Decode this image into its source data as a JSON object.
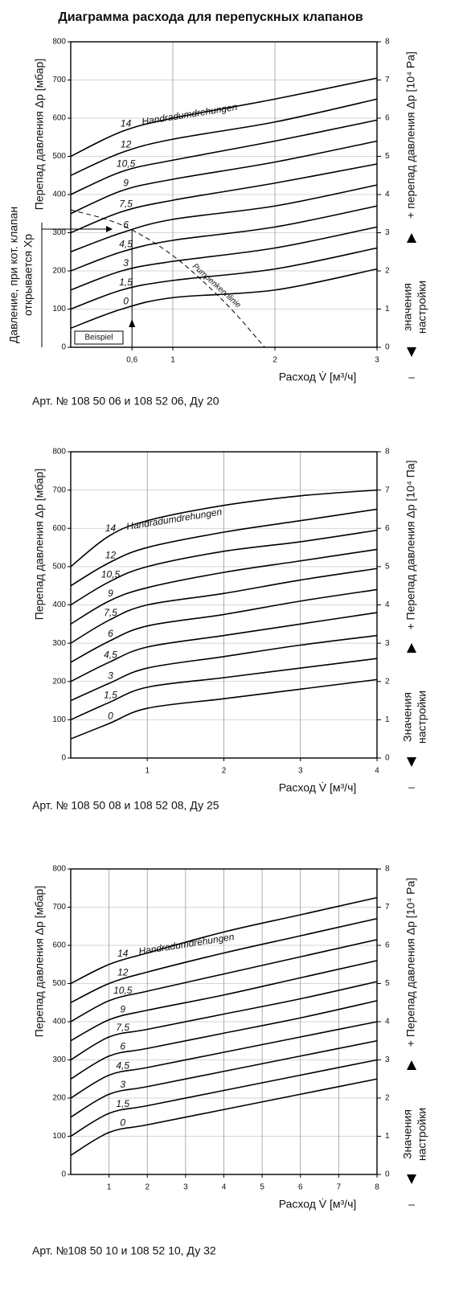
{
  "title": "Диаграмма расхода для перепускных клапанов",
  "chart_data": [
    {
      "type": "line",
      "caption": "Арт. № 108 50 06 и 108 52 06, Ду 20",
      "ylabel": "Перепад давления Δp [мбар]",
      "y2label": "+ перепад давления Δp [10⁴ Pa]",
      "setting_label": [
        "значения",
        "настройки"
      ],
      "minus_sign": "–",
      "xlabel": "Расход V̇ [м³/ч]",
      "curve_note": "Handradumdrehungen",
      "xp_label": [
        "Давление, при кот. клапан",
        "открывается Xp"
      ],
      "example": "Beispiel",
      "xlim": [
        0,
        3
      ],
      "ylim": [
        0,
        800
      ],
      "y2lim": [
        0,
        8
      ],
      "xticks": [
        {
          "value": 0.6,
          "label": "0,6"
        },
        1,
        2,
        3
      ],
      "yticks": [
        0,
        100,
        200,
        300,
        400,
        500,
        600,
        700,
        800
      ],
      "y2ticks": [
        0,
        1,
        2,
        3,
        4,
        5,
        6,
        7,
        8
      ],
      "grid": true,
      "x": [
        0,
        0.5,
        1,
        2,
        3
      ],
      "series": [
        {
          "name": "14",
          "color": "#000000",
          "values": [
            500,
            565,
            600,
            650,
            705
          ]
        },
        {
          "name": "12",
          "color": "#000000",
          "values": [
            450,
            510,
            545,
            590,
            650
          ]
        },
        {
          "name": "10,5",
          "color": "#000000",
          "values": [
            400,
            460,
            490,
            540,
            595
          ]
        },
        {
          "name": "9",
          "color": "#000000",
          "values": [
            350,
            410,
            440,
            485,
            540
          ]
        },
        {
          "name": "7,5",
          "color": "#000000",
          "values": [
            300,
            355,
            385,
            430,
            480
          ]
        },
        {
          "name": "6",
          "color": "#000000",
          "values": [
            250,
            300,
            335,
            370,
            425
          ]
        },
        {
          "name": "4,5",
          "color": "#000000",
          "values": [
            200,
            250,
            280,
            315,
            370
          ]
        },
        {
          "name": "3",
          "color": "#000000",
          "values": [
            150,
            200,
            225,
            260,
            315
          ]
        },
        {
          "name": "1,5",
          "color": "#000000",
          "values": [
            100,
            150,
            175,
            205,
            260
          ]
        },
        {
          "name": "0",
          "color": "#000000",
          "values": [
            50,
            100,
            130,
            150,
            205
          ]
        },
        {
          "name": "Pumpenkennlinie",
          "color": "#000000",
          "dashed": true,
          "x": [
            0,
            0.5,
            1,
            1.5,
            1.9
          ],
          "values": [
            360,
            320,
            240,
            120,
            0
          ]
        }
      ]
    },
    {
      "type": "line",
      "caption": "Арт. № 108 50 08 и 108 52 08, Ду 25",
      "ylabel": "Перепад давления Δp [мбар]",
      "y2label": "+ Перепад давления Δp [10⁴ Па]",
      "setting_label": [
        "Значения",
        "настройки"
      ],
      "minus_sign": "–",
      "xlabel": "Расход V̇ [м³/ч]",
      "curve_note": "Handradumdrehungen",
      "xlim": [
        0,
        4
      ],
      "ylim": [
        0,
        800
      ],
      "y2lim": [
        0,
        8
      ],
      "xticks": [
        1,
        2,
        3,
        4
      ],
      "yticks": [
        0,
        100,
        200,
        300,
        400,
        500,
        600,
        700,
        800
      ],
      "y2ticks": [
        0,
        1,
        2,
        3,
        4,
        5,
        6,
        7,
        8
      ],
      "grid": true,
      "x": [
        0,
        0.5,
        1,
        2,
        3,
        4
      ],
      "series": [
        {
          "name": "14",
          "color": "#000000",
          "values": [
            500,
            580,
            620,
            660,
            685,
            700
          ]
        },
        {
          "name": "12",
          "color": "#000000",
          "values": [
            450,
            510,
            550,
            590,
            620,
            650
          ]
        },
        {
          "name": "10,5",
          "color": "#000000",
          "values": [
            400,
            460,
            500,
            540,
            565,
            595
          ]
        },
        {
          "name": "9",
          "color": "#000000",
          "values": [
            350,
            410,
            445,
            485,
            515,
            545
          ]
        },
        {
          "name": "7,5",
          "color": "#000000",
          "values": [
            300,
            360,
            400,
            430,
            465,
            495
          ]
        },
        {
          "name": "6",
          "color": "#000000",
          "values": [
            250,
            305,
            345,
            375,
            410,
            440
          ]
        },
        {
          "name": "4,5",
          "color": "#000000",
          "values": [
            200,
            250,
            290,
            320,
            350,
            380
          ]
        },
        {
          "name": "3",
          "color": "#000000",
          "values": [
            150,
            195,
            235,
            265,
            295,
            320
          ]
        },
        {
          "name": "1,5",
          "color": "#000000",
          "values": [
            100,
            145,
            185,
            210,
            235,
            260
          ]
        },
        {
          "name": "0",
          "color": "#000000",
          "values": [
            50,
            90,
            130,
            155,
            180,
            205
          ]
        }
      ]
    },
    {
      "type": "line",
      "caption": "Арт. №108 50 10 и 108 52 10, Ду 32",
      "ylabel": "Перепад давления Δp [мбар]",
      "y2label": "+ Перепад давления Δp [10⁴ Pa]",
      "setting_label": [
        "Значения",
        "настройки"
      ],
      "minus_sign": "–",
      "xlabel": "Расход V̇ [м³/ч]",
      "curve_note": "Handradumdrehungen",
      "xlim": [
        0,
        8
      ],
      "ylim": [
        0,
        800
      ],
      "y2lim": [
        0,
        8
      ],
      "xticks": [
        1,
        2,
        3,
        4,
        5,
        6,
        7,
        8
      ],
      "yticks": [
        0,
        100,
        200,
        300,
        400,
        500,
        600,
        700,
        800
      ],
      "y2ticks": [
        0,
        1,
        2,
        3,
        4,
        5,
        6,
        7,
        8
      ],
      "grid": true,
      "x": [
        0,
        1,
        2,
        4,
        6,
        8
      ],
      "series": [
        {
          "name": "14",
          "color": "#000000",
          "values": [
            500,
            550,
            580,
            635,
            680,
            725
          ]
        },
        {
          "name": "12",
          "color": "#000000",
          "values": [
            450,
            500,
            530,
            580,
            625,
            670
          ]
        },
        {
          "name": "10,5",
          "color": "#000000",
          "values": [
            400,
            455,
            480,
            525,
            570,
            615
          ]
        },
        {
          "name": "9",
          "color": "#000000",
          "values": [
            350,
            405,
            430,
            470,
            515,
            560
          ]
        },
        {
          "name": "7,5",
          "color": "#000000",
          "values": [
            300,
            360,
            380,
            420,
            460,
            505
          ]
        },
        {
          "name": "6",
          "color": "#000000",
          "values": [
            250,
            310,
            330,
            370,
            410,
            455
          ]
        },
        {
          "name": "4,5",
          "color": "#000000",
          "values": [
            200,
            260,
            280,
            320,
            360,
            400
          ]
        },
        {
          "name": "3",
          "color": "#000000",
          "values": [
            150,
            210,
            230,
            270,
            310,
            350
          ]
        },
        {
          "name": "1,5",
          "color": "#000000",
          "values": [
            100,
            160,
            180,
            220,
            260,
            300
          ]
        },
        {
          "name": "0",
          "color": "#000000",
          "values": [
            50,
            110,
            130,
            170,
            210,
            250
          ]
        }
      ]
    }
  ]
}
